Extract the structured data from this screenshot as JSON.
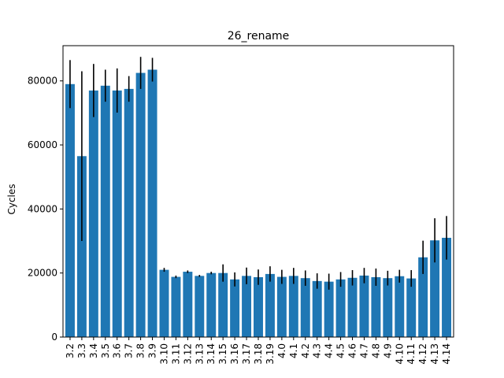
{
  "chart_data": {
    "type": "bar",
    "title": "26_rename",
    "xlabel": "",
    "ylabel": "Cycles",
    "ylim": [
      0,
      91000
    ],
    "yticks": [
      0,
      20000,
      40000,
      60000,
      80000
    ],
    "grid": false,
    "bar_color": "#1f77b4",
    "error_color": "#000000",
    "categories": [
      "3.2",
      "3.3",
      "3.4",
      "3.5",
      "3.6",
      "3.7",
      "3.8",
      "3.9",
      "3.10",
      "3.11",
      "3.12",
      "3.13",
      "3.14",
      "3.15",
      "3.16",
      "3.17",
      "3.18",
      "3.19",
      "4.0",
      "4.1",
      "4.2",
      "4.3",
      "4.4",
      "4.5",
      "4.6",
      "4.7",
      "4.8",
      "4.9",
      "4.10",
      "4.11",
      "4.12",
      "4.13",
      "4.14"
    ],
    "values": [
      79000,
      56500,
      77000,
      78500,
      77000,
      77500,
      82500,
      83500,
      21000,
      18800,
      20400,
      19100,
      20000,
      20000,
      18000,
      19100,
      18700,
      19700,
      18800,
      19100,
      18400,
      17500,
      17300,
      18000,
      18500,
      19200,
      18700,
      18400,
      19000,
      18300,
      24900,
      30200,
      31000
    ],
    "errors": [
      7500,
      26500,
      8300,
      5000,
      6900,
      4000,
      5000,
      3700,
      600,
      400,
      400,
      300,
      400,
      2700,
      2200,
      2600,
      2400,
      2400,
      2200,
      2500,
      2400,
      2400,
      2500,
      2300,
      2400,
      2400,
      2700,
      2300,
      2000,
      2600,
      5200,
      6900,
      6800
    ]
  }
}
